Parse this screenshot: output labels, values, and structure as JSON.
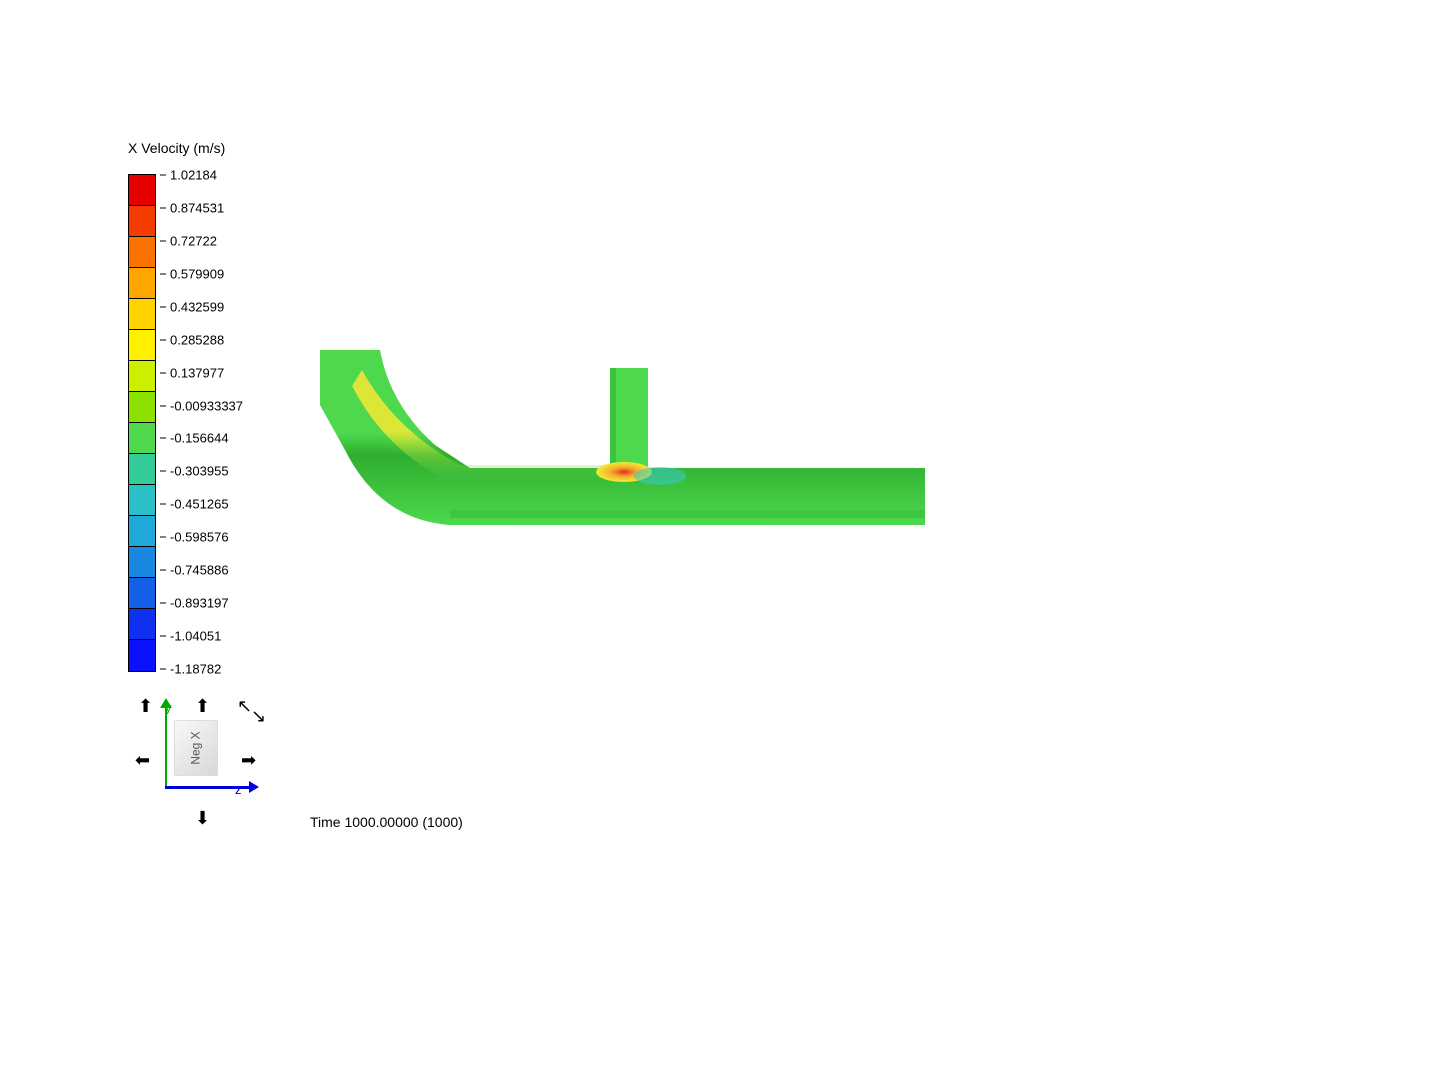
{
  "legend": {
    "title": "X Velocity (m/s)",
    "colors": [
      "#e60000",
      "#f23c00",
      "#fa7300",
      "#ffa500",
      "#ffd200",
      "#fff000",
      "#ccf000",
      "#8be000",
      "#4dd84d",
      "#33cc99",
      "#2bc0c8",
      "#1fa8d8",
      "#1a88e0",
      "#1560e8",
      "#1030f0",
      "#0b10ff"
    ],
    "ticks": [
      "1.02184",
      "0.874531",
      "0.72722",
      "0.579909",
      "0.432599",
      "0.285288",
      "0.137977",
      "-0.00933337",
      "-0.156644",
      "-0.303955",
      "-0.451265",
      "-0.598576",
      "-0.745886",
      "-0.893197",
      "-1.04051",
      "-1.18782"
    ]
  },
  "triad": {
    "face_label": "Neg X",
    "y_label": "y",
    "z_label": "z"
  },
  "time": {
    "label": "Time 1000.00000 (1000)"
  },
  "pipe": {
    "main_color": "#4dd84d",
    "highlight_yellow": "#f5e832",
    "highlight_orange": "#f2b030",
    "hotspot_red": "#e63018",
    "cool_cyan": "#38c8c8",
    "shade_dark": "#2fae2f"
  }
}
